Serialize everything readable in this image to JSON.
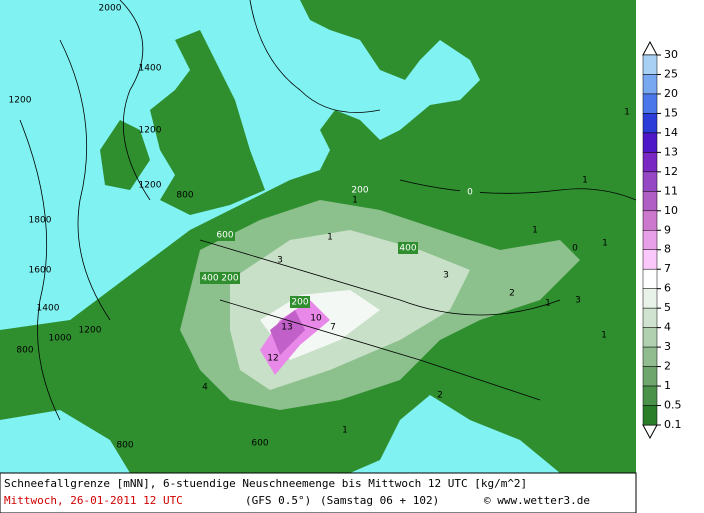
{
  "caption": {
    "line1": "Schneefallgrenze [mNN], 6-stuendige Neuschneemenge bis Mittwoch 12 UTC [kg/m^2]",
    "date": "Mittwoch, 26-01-2011  12 UTC",
    "model": "(GFS 0.5°)",
    "run": "(Samstag 06 + 102)",
    "source": "© www.wetter3.de"
  },
  "colorbar": {
    "levels": [
      30,
      25,
      20,
      15,
      14,
      13,
      12,
      11,
      10,
      9,
      8,
      7,
      6,
      5,
      4,
      3,
      2,
      1,
      0.5,
      0.1
    ],
    "colors": [
      "#a8d0f4",
      "#78a8f0",
      "#4a78ea",
      "#2c3cd8",
      "#4e18c8",
      "#7a28c4",
      "#9648c4",
      "#b060c4",
      "#cc78cc",
      "#e8a0e8",
      "#fac8fa",
      "#ffffff",
      "#e8f2e8",
      "#d0e2d0",
      "#b0d0b0",
      "#90bc90",
      "#6ea66e",
      "#4a924a",
      "#2a7e2a"
    ]
  },
  "map_labels": [
    "2000",
    "1200",
    "1400",
    "1200",
    "1800",
    "1600",
    "1400",
    "1200",
    "1000",
    "800",
    "1200",
    "800",
    "600",
    "400",
    "200",
    "0",
    "200",
    "400",
    "200",
    "1",
    "1",
    "1",
    "1",
    "1",
    "1",
    "1",
    "2",
    "2",
    "3",
    "3",
    "3",
    "4",
    "13",
    "10",
    "12",
    "7",
    "600",
    "800",
    "0",
    "1",
    "1"
  ]
}
